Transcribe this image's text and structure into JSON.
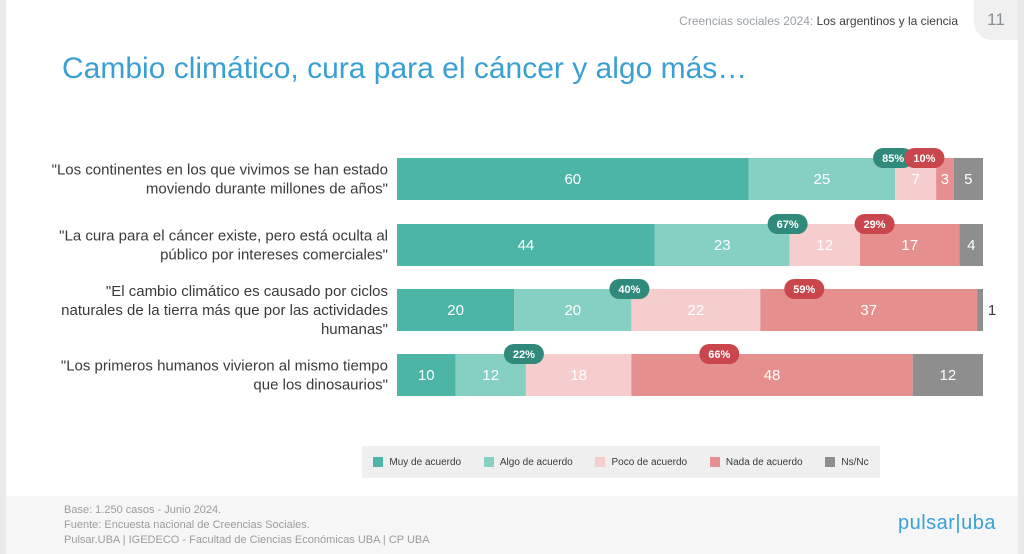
{
  "header": {
    "subtitle_light": "Creencias sociales 2024: ",
    "subtitle_bold": "Los argentinos y la ciencia",
    "page_number": "11"
  },
  "title": "Cambio climático, cura para el cáncer y algo más…",
  "chart_data": {
    "type": "bar",
    "orientation": "horizontal",
    "stacked": true,
    "unit": "percent",
    "categories": [
      [
        "\"Los continentes en los que vivimos se han estado",
        "moviendo durante millones de años\""
      ],
      [
        "\"La cura para el cáncer existe, pero está oculta al",
        "público por intereses comerciales\""
      ],
      [
        "\"El cambio climático es causado por ciclos",
        "naturales de la tierra más que por las actividades",
        "humanas\""
      ],
      [
        "\"Los primeros humanos vivieron al mismo tiempo",
        "que los dinosaurios\""
      ]
    ],
    "series": [
      {
        "name": "Muy de acuerdo",
        "color": "#4cb5a5",
        "values": [
          60,
          44,
          20,
          10
        ]
      },
      {
        "name": "Algo de acuerdo",
        "color": "#86cfc3",
        "values": [
          25,
          23,
          20,
          12
        ]
      },
      {
        "name": "Poco de acuerdo",
        "color": "#f5cdcd",
        "values": [
          7,
          12,
          22,
          18
        ]
      },
      {
        "name": "Nada de acuerdo",
        "color": "#e68f8f",
        "values": [
          3,
          17,
          37,
          48
        ]
      },
      {
        "name": "Ns/Nc",
        "color": "#8e8e8e",
        "values": [
          5,
          4,
          1,
          12
        ]
      }
    ],
    "agree_totals": [
      "85%",
      "67%",
      "40%",
      "22%"
    ],
    "disagree_totals": [
      "10%",
      "29%",
      "59%",
      "66%"
    ],
    "agree_badge_color": "#2f8a7c",
    "disagree_badge_color": "#c9464c",
    "xlim": [
      0,
      100
    ],
    "legend_position": "bottom"
  },
  "footer": {
    "notes": [
      "Base: 1.250 casos - Junio 2024.",
      "Fuente: Encuesta nacional de Creencias Sociales.",
      "Pulsar.UBA | IGEDECO - Facultad de Ciencias Económicas UBA | CP UBA"
    ],
    "brand": "pulsar|uba"
  }
}
